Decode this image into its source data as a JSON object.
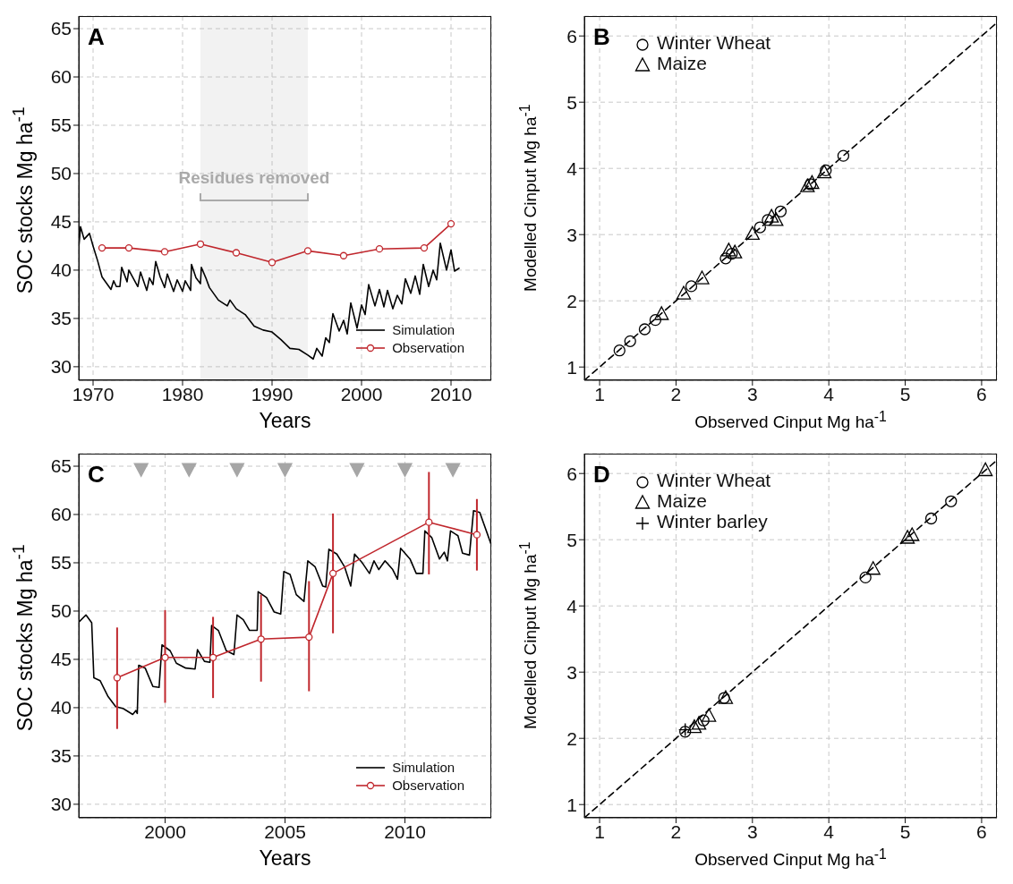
{
  "chart_data": [
    {
      "type": "line",
      "title": "A",
      "xlabel": "Years",
      "ylabel": "SOC stocks Mg ha$^{-1}$",
      "xlim": [
        1968.4,
        2014.5
      ],
      "ylim": [
        28.6,
        66.3
      ],
      "xticks": [
        1970,
        1980,
        1990,
        2000,
        2010
      ],
      "yticks": [
        30,
        35,
        40,
        45,
        50,
        55,
        60,
        65
      ],
      "grid": true,
      "legend": "bottom right",
      "bands": [
        {
          "axis": "x",
          "from": 1982,
          "to": 1994,
          "label": "Residues removed",
          "color": "#aaaaaa"
        }
      ],
      "series": [
        {
          "name": "Simulation",
          "color": "#000000",
          "marker": "none",
          "x": [
            1968.4,
            1968.6,
            1969,
            1969.6,
            1970,
            1970.5,
            1971,
            1972,
            1972.3,
            1972.6,
            1973,
            1973.2,
            1973.8,
            1974,
            1975,
            1975.3,
            1976,
            1976.3,
            1976.7,
            1977,
            1977.5,
            1978,
            1978.3,
            1979,
            1979.4,
            1980,
            1980.3,
            1980.9,
            1981,
            1981.5,
            1982,
            1982.1,
            1982.6,
            1983,
            1984,
            1985,
            1985.3,
            1986,
            1987,
            1988,
            1989,
            1990,
            1991,
            1992,
            1993,
            1994,
            1994.6,
            1995,
            1995.6,
            1996,
            1996.4,
            1996.8,
            1997.5,
            1998,
            1998.4,
            1998.8,
            1999.5,
            2000,
            2000.4,
            2000.8,
            2001.5,
            2002,
            2002.5,
            2002.9,
            2003.5,
            2004,
            2004.5,
            2004.9,
            2005.5,
            2006,
            2006.5,
            2006.9,
            2007.5,
            2008,
            2008.4,
            2008.8,
            2009.5,
            2010,
            2010.4,
            2010.9
          ],
          "values": [
            42.3,
            44.5,
            43.2,
            43.8,
            42.5,
            41,
            39.3,
            38,
            38.9,
            38.3,
            38.3,
            40.3,
            38.8,
            40,
            38.3,
            39.8,
            37.9,
            39.2,
            38.5,
            40.9,
            39.3,
            38.2,
            39.6,
            37.8,
            39,
            37.8,
            38.9,
            37.9,
            40.6,
            39.2,
            38.6,
            40.3,
            39.2,
            38.2,
            36.9,
            36.3,
            36.9,
            36,
            35.4,
            34.2,
            33.8,
            33.6,
            32.8,
            31.9,
            31.8,
            31.2,
            30.8,
            31.9,
            31.1,
            33,
            32.5,
            35.5,
            33.7,
            34.8,
            33.4,
            36.6,
            34,
            36.4,
            35.4,
            38.5,
            36.3,
            38,
            36.2,
            37.9,
            36,
            37.4,
            36.5,
            39.1,
            37.6,
            39.4,
            37.5,
            40.6,
            38.3,
            40,
            39,
            42.8,
            40,
            42.1,
            39.9,
            40.2
          ]
        },
        {
          "name": "Observation",
          "color": "#c0272d",
          "marker": "circle",
          "x": [
            1971,
            1974,
            1978,
            1982,
            1986,
            1990,
            1994,
            1998,
            2002,
            2007,
            2010
          ],
          "values": [
            42.3,
            42.3,
            41.9,
            42.7,
            41.8,
            40.8,
            42,
            41.5,
            42.2,
            42.3,
            44.8
          ]
        }
      ]
    },
    {
      "type": "scatter",
      "title": "B",
      "xlabel": "Observed Cinput Mg ha$^{-1}$",
      "ylabel": "Modelled Cinput Mg ha$^{-1}$",
      "xlim": [
        0.8,
        6.2
      ],
      "ylim": [
        0.8,
        6.3
      ],
      "xticks": [
        1,
        2,
        3,
        4,
        5,
        6
      ],
      "yticks": [
        1,
        2,
        3,
        4,
        5,
        6
      ],
      "grid": true,
      "legend": "top left",
      "series": [
        {
          "type": "line",
          "color": "#000000",
          "line_style": "dashed",
          "marker": "none",
          "x": [
            0.8,
            6.2
          ],
          "values": [
            0.8,
            6.2
          ]
        },
        {
          "name": "Winter Wheat",
          "color": "#000000",
          "marker": "circle",
          "x": [
            1.26,
            1.4,
            1.59,
            1.73,
            2.2,
            2.65,
            2.73,
            3.1,
            3.2,
            3.37,
            3.76,
            3.96,
            4.19
          ],
          "values": [
            1.25,
            1.39,
            1.57,
            1.71,
            2.22,
            2.64,
            2.71,
            3.11,
            3.22,
            3.35,
            3.76,
            3.97,
            4.19
          ]
        },
        {
          "name": "Maize",
          "color": "#000000",
          "marker": "triangle",
          "x": [
            1.81,
            2.1,
            2.34,
            2.69,
            2.77,
            3,
            3.25,
            3.31,
            3.72,
            3.78,
            3.94
          ],
          "values": [
            1.8,
            2.11,
            2.34,
            2.76,
            2.73,
            3.01,
            3.27,
            3.22,
            3.73,
            3.78,
            3.94
          ]
        }
      ]
    },
    {
      "type": "line",
      "title": "C",
      "xlabel": "Years",
      "ylabel": "SOC stocks Mg ha$^{-1}$",
      "xlim": [
        1996.4,
        2013.6
      ],
      "ylim": [
        28.6,
        66.3
      ],
      "xticks": [
        2000,
        2005,
        2010
      ],
      "yticks": [
        30,
        35,
        40,
        45,
        50,
        55,
        60,
        65
      ],
      "grid": true,
      "legend": "bottom right",
      "series": [
        {
          "name": "Simulation",
          "color": "#000000",
          "marker": "none",
          "x": [
            1996.42,
            1996.7,
            1996.94,
            1997.03,
            1997.29,
            1997.61,
            1997.94,
            1998.26,
            1998.65,
            1998.78,
            1998.84,
            1998.9,
            1999.17,
            1999.49,
            1999.75,
            1999.87,
            2000.21,
            2000.47,
            2000.86,
            2001.25,
            2001.35,
            2001.64,
            2001.87,
            2001.94,
            2002.22,
            2002.55,
            2002.87,
            2003,
            2003.26,
            2003.52,
            2003.84,
            2003.88,
            2004.23,
            2004.55,
            2004.82,
            2004.95,
            2005.21,
            2005.47,
            2005.79,
            2005.95,
            2006.25,
            2006.57,
            2006.7,
            2006.83,
            2007.16,
            2007.48,
            2007.74,
            2007.9,
            2008.19,
            2008.52,
            2008.71,
            2008.91,
            2009.17,
            2009.49,
            2009.69,
            2009.82,
            2010.21,
            2010.47,
            2010.75,
            2010.83,
            2011.12,
            2011.44,
            2011.64,
            2011.77,
            2011.9,
            2012.21,
            2012.4,
            2012.69,
            2012.86,
            2013.12,
            2013.58
          ],
          "values": [
            48.9,
            49.6,
            48.8,
            43.1,
            42.8,
            41.2,
            40.1,
            39.9,
            39.3,
            39.7,
            39.4,
            44.4,
            44.1,
            42.2,
            42.1,
            46.5,
            45.9,
            44.6,
            44.1,
            44,
            46,
            44.8,
            44.7,
            48.5,
            48,
            45.9,
            45.5,
            49.6,
            49.1,
            48,
            48,
            52,
            51.4,
            49.9,
            49.7,
            54.1,
            53.8,
            51.7,
            51,
            55.2,
            54.6,
            52.6,
            52.5,
            56.4,
            55.9,
            54.6,
            52.6,
            55.9,
            55.1,
            53.9,
            55.2,
            54.3,
            55.2,
            54.3,
            53.3,
            56.5,
            55.4,
            53.9,
            53.9,
            58.3,
            57.6,
            55.4,
            56.1,
            55.2,
            58.3,
            57.8,
            56,
            55.8,
            60.4,
            60.2,
            57
          ]
        },
        {
          "name": "Observation",
          "color": "#c0272d",
          "marker": "circle",
          "x": [
            1998,
            2000,
            2002,
            2004,
            2006,
            2007,
            2011,
            2013
          ],
          "values": [
            43.1,
            45.2,
            45.2,
            47.1,
            47.3,
            53.9,
            59.2,
            57.9
          ],
          "errors": [
            [
              37.8,
              48.3
            ],
            [
              40.5,
              50.1
            ],
            [
              41,
              49.4
            ],
            [
              42.7,
              51.7
            ],
            [
              41.7,
              53.1
            ],
            [
              47.7,
              60.1
            ],
            [
              53.8,
              64.4
            ],
            [
              54.2,
              61.6
            ]
          ]
        },
        {
          "type": "scatter",
          "color": "#a6a6a6",
          "marker": "triangle",
          "x": [
            1999,
            2001,
            2003,
            2005,
            2008,
            2010,
            2012
          ],
          "values": [
            64.7,
            64.7,
            64.7,
            64.7,
            64.7,
            64.7,
            64.7
          ]
        }
      ]
    },
    {
      "type": "scatter",
      "title": "D",
      "xlabel": "Observed Cinput Mg ha$^{-1}$",
      "ylabel": "Modelled Cinput Mg ha$^{-1}$",
      "xlim": [
        0.8,
        6.2
      ],
      "ylim": [
        0.8,
        6.3
      ],
      "xticks": [
        1,
        2,
        3,
        4,
        5,
        6
      ],
      "yticks": [
        1,
        2,
        3,
        4,
        5,
        6
      ],
      "grid": true,
      "legend": "top left",
      "series": [
        {
          "type": "line",
          "color": "#000000",
          "line_style": "dashed",
          "marker": "none",
          "x": [
            0.8,
            6.2
          ],
          "values": [
            0.8,
            6.2
          ]
        },
        {
          "name": "Winter Wheat",
          "color": "#000000",
          "marker": "circle",
          "x": [
            2.12,
            2.36,
            2.63,
            4.48,
            5.34,
            5.6
          ],
          "values": [
            2.1,
            2.27,
            2.61,
            4.43,
            5.32,
            5.58
          ]
        },
        {
          "name": "Maize",
          "color": "#000000",
          "marker": "triangle",
          "x": [
            2.24,
            2.3,
            2.43,
            2.65,
            4.58,
            5.03,
            5.09,
            6.05
          ],
          "values": [
            2.17,
            2.22,
            2.34,
            2.61,
            4.56,
            5.03,
            5.07,
            6.05
          ]
        },
        {
          "name": "Winter barley",
          "color": "#000000",
          "marker": "cross",
          "x": [
            2.12
          ],
          "values": [
            2.13
          ]
        }
      ]
    }
  ]
}
